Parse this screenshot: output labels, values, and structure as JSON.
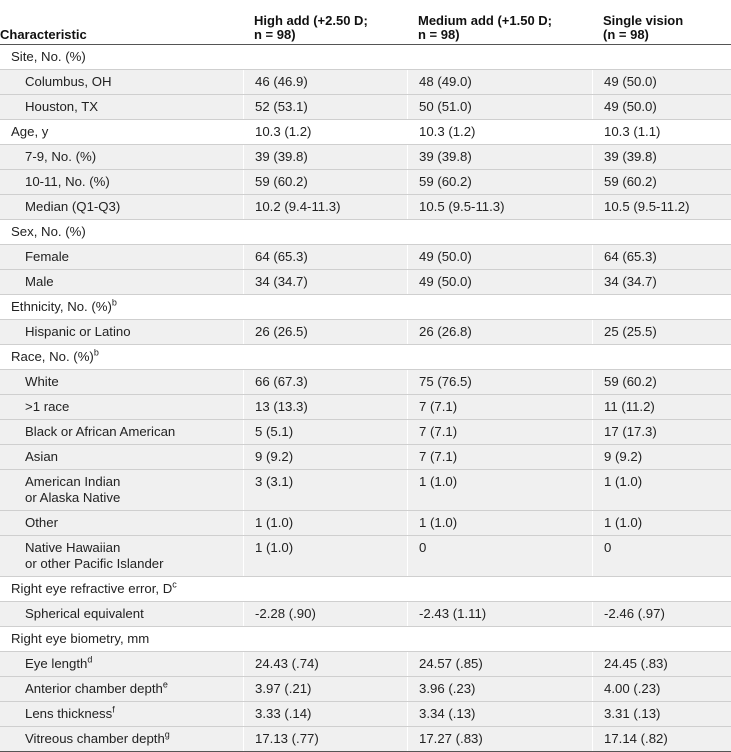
{
  "header": {
    "characteristic": "Characteristic",
    "col1_line1": "High add (+2.50 D;",
    "col1_line2": "n = 98)",
    "col2_line1": "Medium add (+1.50 D;",
    "col2_line2": "n = 98)",
    "col3_line1": "Single vision",
    "col3_line2": "(n = 98)"
  },
  "rows": [
    {
      "label": "Site, No. (%)",
      "type": "section"
    },
    {
      "label": "Columbus, OH",
      "type": "sub",
      "v": [
        "46 (46.9)",
        "48 (49.0)",
        "49 (50.0)"
      ]
    },
    {
      "label": "Houston, TX",
      "type": "sub",
      "v": [
        "52 (53.1)",
        "50 (51.0)",
        "49 (50.0)"
      ]
    },
    {
      "label": "Age, y",
      "type": "section",
      "v": [
        "10.3 (1.2)",
        "10.3 (1.2)",
        "10.3 (1.1)"
      ]
    },
    {
      "label": "7-9, No. (%)",
      "type": "sub",
      "v": [
        "39 (39.8)",
        "39 (39.8)",
        "39 (39.8)"
      ]
    },
    {
      "label": "10-11, No. (%)",
      "type": "sub",
      "v": [
        "59 (60.2)",
        "59 (60.2)",
        "59 (60.2)"
      ]
    },
    {
      "label": "Median (Q1-Q3)",
      "type": "sub",
      "v": [
        "10.2 (9.4-11.3)",
        "10.5 (9.5-11.3)",
        "10.5 (9.5-11.2)"
      ]
    },
    {
      "label": "Sex, No. (%)",
      "type": "section"
    },
    {
      "label": "Female",
      "type": "sub",
      "v": [
        "64 (65.3)",
        "49 (50.0)",
        "64 (65.3)"
      ]
    },
    {
      "label": "Male",
      "type": "sub",
      "v": [
        "34 (34.7)",
        "49 (50.0)",
        "34 (34.7)"
      ]
    },
    {
      "label": "Ethnicity, No. (%)",
      "sup": "b",
      "type": "section"
    },
    {
      "label": "Hispanic or Latino",
      "type": "sub",
      "v": [
        "26 (26.5)",
        "26 (26.8)",
        "25 (25.5)"
      ]
    },
    {
      "label": "Race, No. (%)",
      "sup": "b",
      "type": "section"
    },
    {
      "label": "White",
      "type": "sub",
      "v": [
        "66 (67.3)",
        "75 (76.5)",
        "59 (60.2)"
      ]
    },
    {
      "label": ">1 race",
      "type": "sub",
      "v": [
        "13 (13.3)",
        "7 (7.1)",
        "11 (11.2)"
      ]
    },
    {
      "label": "Black or African American",
      "type": "sub",
      "v": [
        "5 (5.1)",
        "7 (7.1)",
        "17 (17.3)"
      ]
    },
    {
      "label": "Asian",
      "type": "sub",
      "v": [
        "9 (9.2)",
        "7 (7.1)",
        "9 (9.2)"
      ]
    },
    {
      "label": "American Indian",
      "label2": "or Alaska Native",
      "type": "sub",
      "v": [
        "3 (3.1)",
        "1 (1.0)",
        "1 (1.0)"
      ]
    },
    {
      "label": "Other",
      "type": "sub",
      "v": [
        "1 (1.0)",
        "1 (1.0)",
        "1 (1.0)"
      ]
    },
    {
      "label": "Native Hawaiian",
      "label2": "or other Pacific Islander",
      "type": "sub",
      "v": [
        "1 (1.0)",
        "0",
        "0"
      ]
    },
    {
      "label": "Right eye refractive error, D",
      "sup": "c",
      "type": "section"
    },
    {
      "label": "Spherical equivalent",
      "type": "sub",
      "v": [
        "-2.28 (.90)",
        "-2.43 (1.11)",
        "-2.46 (.97)"
      ]
    },
    {
      "label": "Right eye biometry, mm",
      "type": "section"
    },
    {
      "label": "Eye length",
      "sup": "d",
      "type": "sub",
      "v": [
        "24.43 (.74)",
        "24.57 (.85)",
        "24.45 (.83)"
      ]
    },
    {
      "label": "Anterior chamber depth",
      "sup": "e",
      "type": "sub",
      "v": [
        "3.97 (.21)",
        "3.96 (.23)",
        "4.00 (.23)"
      ]
    },
    {
      "label": "Lens thickness",
      "sup": "f",
      "type": "sub",
      "v": [
        "3.33 (.14)",
        "3.34 (.13)",
        "3.31 (.13)"
      ]
    },
    {
      "label": "Vitreous chamber depth",
      "sup": "g",
      "type": "sub",
      "v": [
        "17.13 (.77)",
        "17.27 (.83)",
        "17.14 (.82)"
      ]
    }
  ]
}
